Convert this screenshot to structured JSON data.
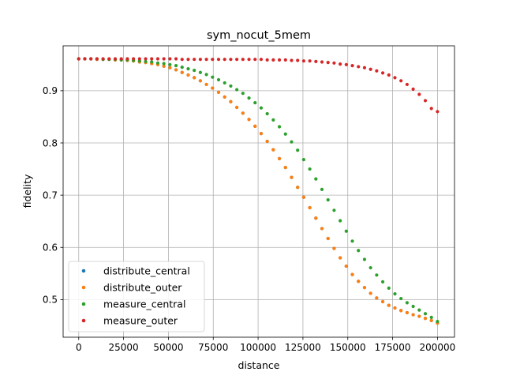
{
  "chart_data": {
    "type": "scatter",
    "title": "sym_nocut_5mem",
    "xlabel": "distance",
    "ylabel": "fidelity",
    "xlim": [
      -8700,
      209500
    ],
    "ylim": [
      0.428,
      0.986
    ],
    "grid": true,
    "legend_position": "lower-left",
    "xticks": [
      0,
      25000,
      50000,
      75000,
      100000,
      125000,
      150000,
      175000,
      200000
    ],
    "xtick_labels": [
      "0",
      "25000",
      "50000",
      "75000",
      "100000",
      "125000",
      "150000",
      "175000",
      "200000"
    ],
    "yticks": [
      0.5,
      0.6,
      0.7,
      0.8,
      0.9
    ],
    "ytick_labels": [
      "0.5",
      "0.6",
      "0.7",
      "0.8",
      "0.9"
    ],
    "x": [
      0,
      3390,
      6780,
      10170,
      13560,
      16950,
      20340,
      23730,
      27120,
      30510,
      33900,
      37290,
      40680,
      44070,
      47460,
      50850,
      54240,
      57630,
      61020,
      64410,
      67800,
      71190,
      74580,
      77970,
      81360,
      84750,
      88140,
      91530,
      94920,
      98310,
      101700,
      105090,
      108480,
      111870,
      115260,
      118650,
      122040,
      125430,
      128820,
      132210,
      135600,
      138990,
      142380,
      145770,
      149160,
      152550,
      155940,
      159330,
      162720,
      166110,
      169500,
      172890,
      176280,
      179670,
      183060,
      186450,
      189840,
      193230,
      196620,
      200000
    ],
    "series": [
      {
        "name": "distribute_central",
        "color": "#1f77b4",
        "values": [
          0.961,
          0.961,
          0.961,
          0.96,
          0.96,
          0.96,
          0.959,
          0.959,
          0.958,
          0.957,
          0.955,
          0.954,
          0.952,
          0.95,
          0.947,
          0.944,
          0.94,
          0.935,
          0.93,
          0.925,
          0.919,
          0.912,
          0.905,
          0.897,
          0.888,
          0.879,
          0.868,
          0.857,
          0.845,
          0.832,
          0.818,
          0.803,
          0.787,
          0.77,
          0.753,
          0.734,
          0.715,
          0.696,
          0.676,
          0.656,
          0.636,
          0.617,
          0.598,
          0.58,
          0.564,
          0.548,
          0.535,
          0.523,
          0.512,
          0.503,
          0.496,
          0.489,
          0.484,
          0.479,
          0.475,
          0.471,
          0.468,
          0.464,
          0.46,
          0.455
        ]
      },
      {
        "name": "distribute_outer",
        "color": "#ff7f0e",
        "values": [
          0.961,
          0.961,
          0.961,
          0.96,
          0.96,
          0.96,
          0.959,
          0.959,
          0.958,
          0.957,
          0.955,
          0.954,
          0.952,
          0.95,
          0.947,
          0.944,
          0.94,
          0.935,
          0.93,
          0.925,
          0.919,
          0.912,
          0.905,
          0.897,
          0.888,
          0.879,
          0.868,
          0.857,
          0.845,
          0.832,
          0.818,
          0.803,
          0.787,
          0.77,
          0.753,
          0.734,
          0.715,
          0.696,
          0.676,
          0.656,
          0.636,
          0.617,
          0.598,
          0.58,
          0.564,
          0.548,
          0.535,
          0.523,
          0.512,
          0.503,
          0.496,
          0.489,
          0.484,
          0.479,
          0.475,
          0.471,
          0.468,
          0.464,
          0.46,
          0.455
        ]
      },
      {
        "name": "measure_central",
        "color": "#2ca02c",
        "values": [
          0.961,
          0.961,
          0.961,
          0.961,
          0.96,
          0.96,
          0.96,
          0.959,
          0.959,
          0.958,
          0.957,
          0.956,
          0.955,
          0.953,
          0.952,
          0.95,
          0.948,
          0.945,
          0.942,
          0.939,
          0.935,
          0.931,
          0.926,
          0.921,
          0.915,
          0.909,
          0.902,
          0.895,
          0.886,
          0.877,
          0.867,
          0.856,
          0.844,
          0.831,
          0.817,
          0.802,
          0.786,
          0.768,
          0.75,
          0.731,
          0.711,
          0.691,
          0.671,
          0.651,
          0.631,
          0.612,
          0.594,
          0.577,
          0.561,
          0.547,
          0.534,
          0.522,
          0.511,
          0.502,
          0.494,
          0.487,
          0.48,
          0.473,
          0.466,
          0.458
        ]
      },
      {
        "name": "measure_outer",
        "color": "#d62728",
        "values": [
          0.961,
          0.961,
          0.961,
          0.961,
          0.961,
          0.961,
          0.961,
          0.961,
          0.961,
          0.961,
          0.961,
          0.961,
          0.961,
          0.961,
          0.961,
          0.961,
          0.961,
          0.96,
          0.96,
          0.96,
          0.96,
          0.96,
          0.96,
          0.96,
          0.96,
          0.96,
          0.96,
          0.96,
          0.96,
          0.96,
          0.96,
          0.959,
          0.959,
          0.959,
          0.959,
          0.958,
          0.958,
          0.957,
          0.957,
          0.956,
          0.955,
          0.954,
          0.953,
          0.951,
          0.95,
          0.948,
          0.946,
          0.944,
          0.941,
          0.938,
          0.934,
          0.93,
          0.925,
          0.919,
          0.912,
          0.903,
          0.893,
          0.881,
          0.866,
          0.86
        ]
      }
    ]
  }
}
